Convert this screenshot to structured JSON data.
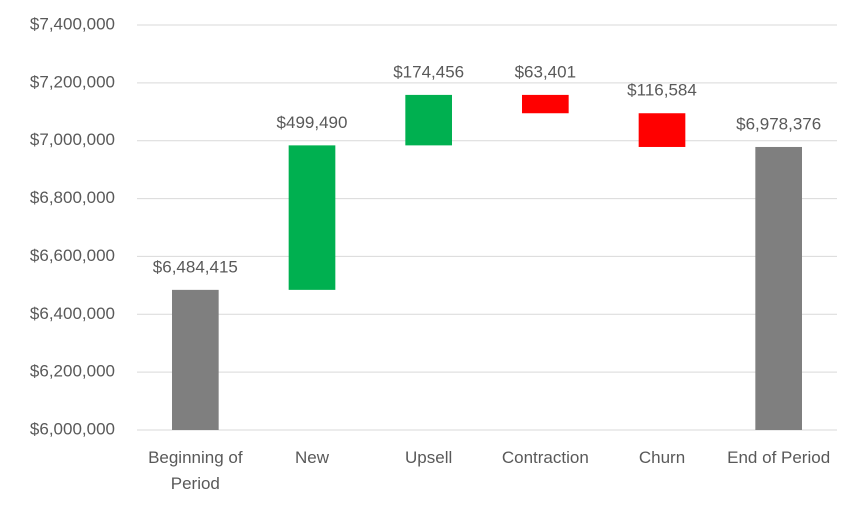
{
  "chart_data": {
    "type": "waterfall",
    "categories": [
      "Beginning of Period",
      "New",
      "Upsell",
      "Contraction",
      "Churn",
      "End of Period"
    ],
    "values": [
      6484415,
      499490,
      174456,
      -63401,
      -116584,
      6978376
    ],
    "value_labels": [
      "$6,484,415",
      "$499,490",
      "$174,456",
      "$63,401",
      "$116,584",
      "$6,978,376"
    ],
    "total_color": "#7f7f7f",
    "increase_color": "#00b050",
    "decrease_color": "#ff0000",
    "ylim": [
      6000000,
      7400000
    ],
    "yticks": [
      {
        "value": 6000000,
        "label": "$6,000,000"
      },
      {
        "value": 6200000,
        "label": "$6,200,000"
      },
      {
        "value": 6400000,
        "label": "$6,400,000"
      },
      {
        "value": 6600000,
        "label": "$6,600,000"
      },
      {
        "value": 6800000,
        "label": "$6,800,000"
      },
      {
        "value": 7000000,
        "label": "$7,000,000"
      },
      {
        "value": 7200000,
        "label": "$7,200,000"
      },
      {
        "value": 7400000,
        "label": "$7,400,000"
      }
    ],
    "grid": true
  }
}
